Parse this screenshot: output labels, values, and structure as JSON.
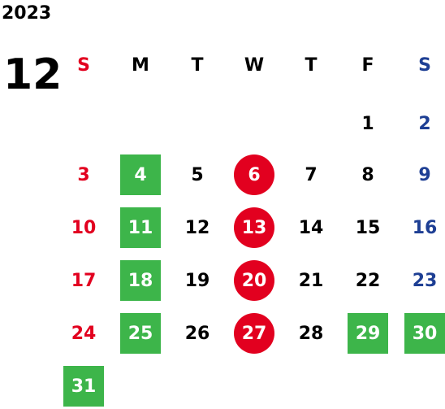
{
  "year": "2023",
  "month": "12",
  "weekdays": [
    {
      "label": "S",
      "color": "#e2001f"
    },
    {
      "label": "M",
      "color": "#000000"
    },
    {
      "label": "T",
      "color": "#000000"
    },
    {
      "label": "W",
      "color": "#000000"
    },
    {
      "label": "T",
      "color": "#000000"
    },
    {
      "label": "F",
      "color": "#000000"
    },
    {
      "label": "S",
      "color": "#1e3f94"
    }
  ],
  "colors": {
    "sunday": "#e2001f",
    "saturday": "#1e3f94",
    "green_highlight": "#3db54a",
    "red_circle": "#e2001f"
  },
  "days": [
    {
      "day": "1",
      "week": 0,
      "col": 5,
      "style": "normal"
    },
    {
      "day": "2",
      "week": 0,
      "col": 6,
      "style": "sat"
    },
    {
      "day": "3",
      "week": 1,
      "col": 0,
      "style": "sun"
    },
    {
      "day": "4",
      "week": 1,
      "col": 1,
      "style": "green"
    },
    {
      "day": "5",
      "week": 1,
      "col": 2,
      "style": "normal"
    },
    {
      "day": "6",
      "week": 1,
      "col": 3,
      "style": "red"
    },
    {
      "day": "7",
      "week": 1,
      "col": 4,
      "style": "normal"
    },
    {
      "day": "8",
      "week": 1,
      "col": 5,
      "style": "normal"
    },
    {
      "day": "9",
      "week": 1,
      "col": 6,
      "style": "sat"
    },
    {
      "day": "10",
      "week": 2,
      "col": 0,
      "style": "sun"
    },
    {
      "day": "11",
      "week": 2,
      "col": 1,
      "style": "green"
    },
    {
      "day": "12",
      "week": 2,
      "col": 2,
      "style": "normal"
    },
    {
      "day": "13",
      "week": 2,
      "col": 3,
      "style": "red"
    },
    {
      "day": "14",
      "week": 2,
      "col": 4,
      "style": "normal"
    },
    {
      "day": "15",
      "week": 2,
      "col": 5,
      "style": "normal"
    },
    {
      "day": "16",
      "week": 2,
      "col": 6,
      "style": "sat"
    },
    {
      "day": "17",
      "week": 3,
      "col": 0,
      "style": "sun"
    },
    {
      "day": "18",
      "week": 3,
      "col": 1,
      "style": "green"
    },
    {
      "day": "19",
      "week": 3,
      "col": 2,
      "style": "normal"
    },
    {
      "day": "20",
      "week": 3,
      "col": 3,
      "style": "red"
    },
    {
      "day": "21",
      "week": 3,
      "col": 4,
      "style": "normal"
    },
    {
      "day": "22",
      "week": 3,
      "col": 5,
      "style": "normal"
    },
    {
      "day": "23",
      "week": 3,
      "col": 6,
      "style": "sat"
    },
    {
      "day": "24",
      "week": 4,
      "col": 0,
      "style": "sun"
    },
    {
      "day": "25",
      "week": 4,
      "col": 1,
      "style": "green"
    },
    {
      "day": "26",
      "week": 4,
      "col": 2,
      "style": "normal"
    },
    {
      "day": "27",
      "week": 4,
      "col": 3,
      "style": "red"
    },
    {
      "day": "28",
      "week": 4,
      "col": 4,
      "style": "normal"
    },
    {
      "day": "29",
      "week": 4,
      "col": 5,
      "style": "green"
    },
    {
      "day": "30",
      "week": 4,
      "col": 6,
      "style": "green"
    },
    {
      "day": "31",
      "week": 5,
      "col": 0,
      "style": "green"
    }
  ]
}
